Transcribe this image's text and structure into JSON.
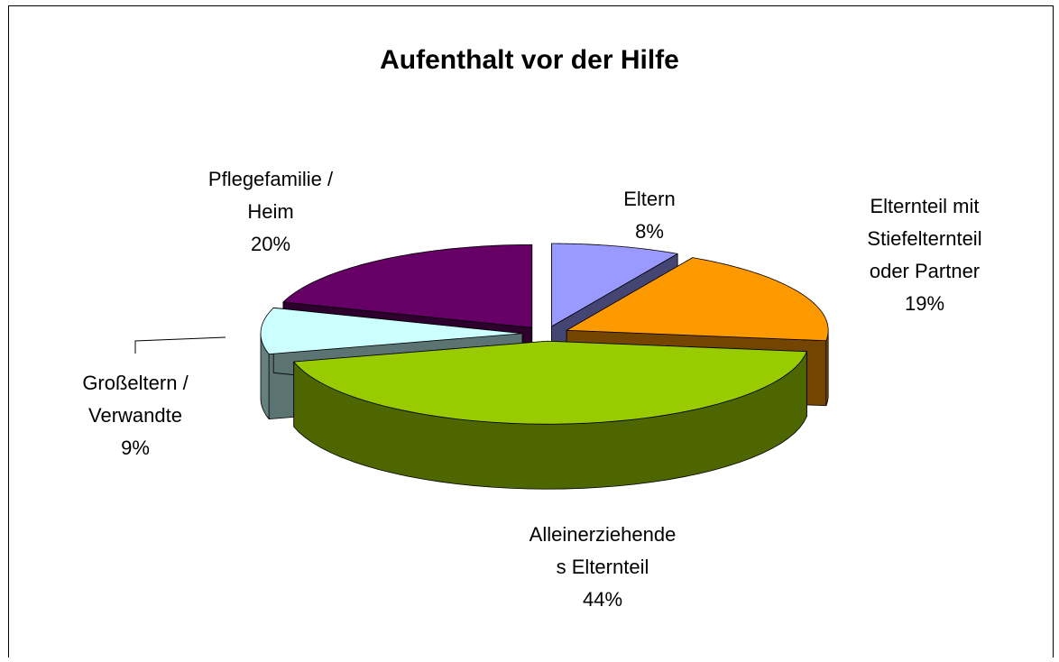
{
  "chart_data": {
    "type": "pie3d",
    "title": "Aufenthalt vor der Hilfe",
    "categories": [
      "Eltern",
      "Elternteil mit\nStiefelternteil\noder Partner",
      "Alleinerziehende\ns Elternteil",
      "Großeltern /\nVerwandte",
      "Pflegefamilie /\nHeim"
    ],
    "values": [
      8,
      19,
      44,
      9,
      20
    ],
    "value_labels": [
      "8%",
      "19%",
      "44%",
      "9%",
      "20%"
    ],
    "colors": [
      "#9999ff",
      "#ff9900",
      "#99cc00",
      "#ccffff",
      "#660066"
    ]
  }
}
